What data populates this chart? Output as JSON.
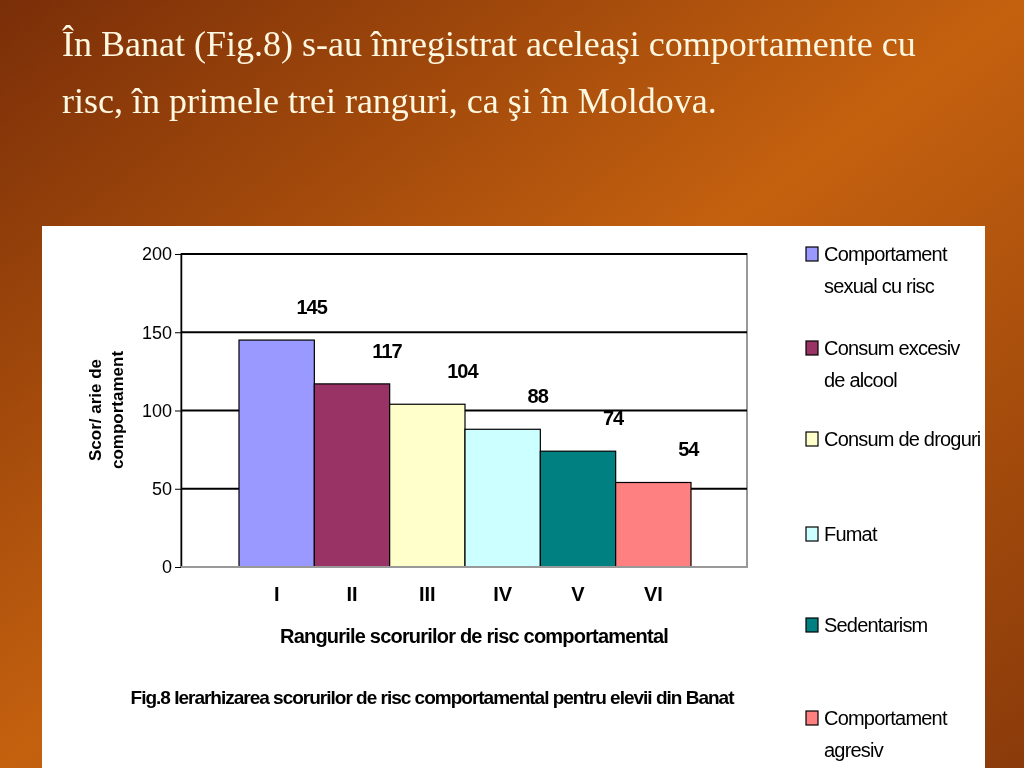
{
  "chart_data": {
    "type": "bar",
    "title": "În Banat (Fig.8) s-au înregistrat aceleaşi comportamente cu risc, în primele trei ranguri, ca şi în Moldova.",
    "xlabel": "Rangurile scorurilor de risc comportamental",
    "ylabel": "Scor/ arie de comportament",
    "annotations": [
      "Fig.8 Ierarhizarea scorurilor de risc comportamental pentru elevii din Banat"
    ],
    "categories": [
      "I",
      "II",
      "III",
      "IV",
      "V",
      "VI"
    ],
    "stacked": true,
    "series": [
      {
        "name": "Comportament sexual cu risc",
        "color": "#9999ff",
        "values": [
          145,
          null,
          null,
          null,
          null,
          null
        ]
      },
      {
        "name": "Consum excesiv de alcool",
        "color": "#993366",
        "values": [
          null,
          117,
          null,
          null,
          null,
          null
        ]
      },
      {
        "name": "Consum de droguri",
        "color": "#ffffcc",
        "values": [
          null,
          null,
          104,
          null,
          null,
          null
        ]
      },
      {
        "name": "Fumat",
        "color": "#ccffff",
        "values": [
          null,
          null,
          null,
          88,
          null,
          null
        ]
      },
      {
        "name": "Sedentarism",
        "color": "#008080",
        "values": [
          null,
          null,
          null,
          null,
          74,
          null
        ]
      },
      {
        "name": "Comportament agresiv",
        "color": "#ff8080",
        "values": [
          null,
          null,
          null,
          null,
          null,
          54
        ]
      }
    ],
    "ylim": [
      0,
      200
    ],
    "yticks": [
      0,
      50,
      100,
      150,
      200
    ],
    "grid": "y",
    "legend": "right",
    "data_labels": true
  }
}
